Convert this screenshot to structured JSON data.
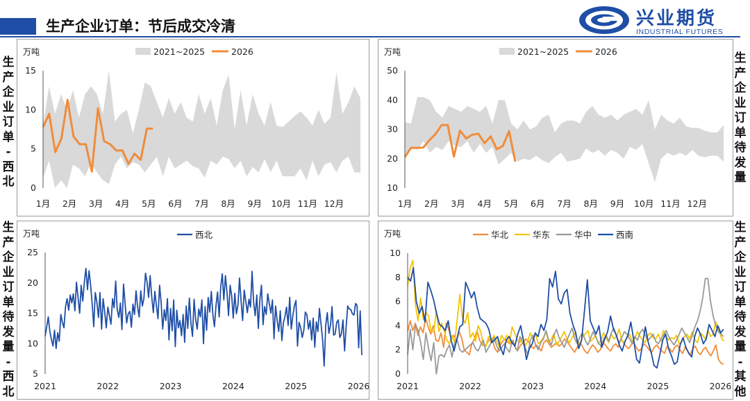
{
  "header": {
    "title": "生产企业订单：节后成交冷清"
  },
  "logo": {
    "cn": "兴业期货",
    "en": "INDUSTRIAL FUTURES"
  },
  "side_labels": {
    "top_left": "生产企业订单-西北",
    "top_right": "生产企业订单待发量",
    "bottom_left": "生产企业订单待发量-西北",
    "bottom_right": "生产企业订单待发量-其他"
  },
  "colors": {
    "band": "#d9d9d9",
    "y2026": "#f08c3a",
    "xibei": "#1f4ea6",
    "huabei": "#f08c3a",
    "huadong": "#f5c400",
    "huazhong": "#999999",
    "xinan": "#1f4ea6"
  },
  "chart_data": [
    {
      "type": "area",
      "unit": "万吨",
      "ylim": [
        0,
        15
      ],
      "yticks": [
        0,
        5,
        10,
        15
      ],
      "months": [
        "1月",
        "2月",
        "3月",
        "4月",
        "5月",
        "6月",
        "7月",
        "8月",
        "9月",
        "10月",
        "11月",
        "12月"
      ],
      "legend": [
        "2021~2025",
        "2026"
      ],
      "band_upper": [
        8,
        13,
        9.5,
        12,
        10,
        12.5,
        9,
        12,
        13,
        12,
        9.5,
        15,
        8.5,
        9.5,
        10,
        7,
        10,
        13.5,
        13,
        11,
        9,
        11.5,
        9.5,
        11,
        9,
        8.5,
        12,
        9.5,
        11.5,
        8,
        12.5,
        14.5,
        7.5,
        12.5,
        8,
        12,
        9.5,
        8,
        11,
        8,
        7.8,
        8.5,
        9.2,
        9.8,
        9,
        8,
        10,
        8.2,
        9,
        14.8,
        9.5,
        11,
        13,
        11.5
      ],
      "band_lower": [
        1.2,
        3.5,
        0,
        1,
        0,
        3,
        2.5,
        1.5,
        3.2,
        2,
        1,
        0.5,
        3,
        4,
        2.5,
        3.3,
        3,
        2,
        3,
        4,
        1.5,
        4,
        2.5,
        3,
        3.5,
        2.8,
        2.5,
        1.3,
        3.5,
        3,
        4,
        3.7,
        2.5,
        3.5,
        1.5,
        2.7,
        2,
        3.7,
        2,
        3.5,
        1.5,
        1.5,
        1.5,
        2.5,
        1,
        3.5,
        1.5,
        3,
        3.3,
        2,
        3.5,
        4,
        2,
        2
      ],
      "series_2026": {
        "name": "2026",
        "values": [
          7.8,
          9.5,
          4.6,
          6.3,
          11.3,
          6.6,
          5.6,
          5.6,
          2.1,
          10.2,
          6,
          5.6,
          4.8,
          4.8,
          3.1,
          4.4,
          3.6,
          7.6,
          7.6
        ]
      }
    },
    {
      "type": "area",
      "unit": "万吨",
      "ylim": [
        10,
        50
      ],
      "yticks": [
        10,
        20,
        30,
        40,
        50
      ],
      "months": [
        "1月",
        "2月",
        "3月",
        "4月",
        "5月",
        "6月",
        "7月",
        "8月",
        "9月",
        "10月",
        "11月",
        "12月"
      ],
      "legend": [
        "2021~2025",
        "2026"
      ],
      "band_upper": [
        32.5,
        32,
        41,
        41,
        40,
        36,
        34,
        38,
        37,
        36,
        38,
        37,
        36,
        38,
        32,
        40,
        40,
        32,
        30,
        33,
        30,
        31,
        34,
        35,
        29,
        32,
        33,
        33,
        32,
        36,
        38,
        35,
        34,
        35,
        33,
        35,
        36,
        37,
        35,
        40,
        30,
        35,
        33,
        32,
        34,
        31,
        30.5,
        30.5,
        29.5,
        29,
        29,
        31.5
      ],
      "band_lower": [
        21,
        24,
        23,
        26,
        22,
        24,
        23,
        26,
        24.5,
        24,
        26,
        22,
        25,
        22,
        24,
        18,
        20,
        22,
        19,
        20,
        19.5,
        21,
        19.5,
        18.5,
        20.5,
        22,
        19,
        19.5,
        20,
        23.5,
        22,
        23,
        21,
        23,
        22,
        20,
        24,
        23,
        25,
        18.5,
        12,
        20,
        22,
        21,
        22,
        21,
        23,
        21,
        20.5,
        21,
        21,
        19
      ],
      "series_2026": {
        "name": "2026",
        "values": [
          20.5,
          23.7,
          23.7,
          23.8,
          26.3,
          28.4,
          31.5,
          31.5,
          20.7,
          29.6,
          26.9,
          28.2,
          28.5,
          25.3,
          27.6,
          23.2,
          24.4,
          29.4,
          19
        ]
      }
    },
    {
      "type": "line",
      "unit": "万吨",
      "ylim": [
        5,
        25
      ],
      "yticks": [
        5,
        10,
        15,
        20,
        25
      ],
      "xticks": [
        "2021",
        "2022",
        "2023",
        "2024",
        "2025",
        "2026"
      ],
      "series": [
        {
          "name": "西北",
          "values": [
            11.2,
            12.8,
            14.4,
            12,
            10.7,
            9.6,
            12.2,
            9.2,
            11.8,
            10.4,
            14.8,
            13.5,
            12.6,
            16,
            17.4,
            15.5,
            18,
            16.7,
            18.2,
            15.4,
            20.1,
            17.6,
            15,
            19.6,
            17,
            20,
            22.4,
            18.9,
            22,
            19.6,
            16.6,
            12.8,
            18.4,
            16.8,
            14.3,
            18.4,
            12.4,
            17.4,
            15.2,
            12.6,
            16,
            14.6,
            13.2,
            17.4,
            15.9,
            20.3,
            15.6,
            14.3,
            16.7,
            12.3,
            19.8,
            16.6,
            13.4,
            14.9,
            15.3,
            12.7,
            16.5,
            14.8,
            18.7,
            16,
            14.4,
            18.7,
            16.2,
            17.4,
            21.6,
            20.2,
            17.6,
            21.2,
            17.7,
            15.1,
            18.6,
            16.2,
            14.1,
            19.6,
            16.8,
            12.4,
            15.6,
            13.8,
            17.4,
            10.6,
            15.8,
            12.1,
            17.2,
            9.5,
            15.5,
            12.6,
            13.8,
            11.3,
            14.8,
            10.2,
            16.2,
            12.5,
            17.5,
            13.4,
            11.2,
            17.3,
            14,
            12.4,
            15.7,
            14.4,
            17.2,
            10,
            16.1,
            12.2,
            17.6,
            15.2,
            18.6,
            14.8,
            12.8,
            16.3,
            18.5,
            14.4,
            19.3,
            21.5,
            17.2,
            21.2,
            18.4,
            14.6,
            19.6,
            17.9,
            14.2,
            18.3,
            14.9,
            16.4,
            20.8,
            17,
            13.8,
            18.8,
            16.9,
            15.1,
            17.3,
            16,
            21.9,
            16.8,
            14.6,
            18,
            12.5,
            17.4,
            19.6,
            13.1,
            16.1,
            14.8,
            18.2,
            16.6,
            15,
            17.2,
            10.8,
            16.2,
            13.8,
            12,
            15.4,
            10.5,
            13.4,
            14.5,
            16,
            13,
            17.6,
            12.4,
            14.6,
            16.2,
            17.1,
            9.6,
            13.5,
            12.6,
            11,
            12.2,
            15.2,
            14.7,
            12.4,
            13.8,
            10.6,
            14.2,
            9.4,
            13.6,
            12,
            15.8,
            13.2,
            10.6,
            6.3,
            13.1,
            15.1,
            11.7,
            13,
            16.1,
            11.4,
            11.6,
            13.5,
            13.9,
            11,
            11.6,
            13.9,
            8.8,
            12.7,
            16.2,
            15.7,
            15.6,
            14.9,
            14.7,
            16.6,
            16.3,
            9.3,
            15.4,
            8.1
          ]
        }
      ]
    },
    {
      "type": "line",
      "unit": "万吨",
      "ylim": [
        0,
        10
      ],
      "yticks": [
        0,
        2,
        4,
        6,
        8,
        10
      ],
      "xticks": [
        "2021",
        "2022",
        "2023",
        "2024",
        "2025",
        "2026"
      ],
      "series": [
        {
          "name": "华北",
          "values": [
            3.5,
            4.4,
            3.6,
            4.2,
            3.2,
            3.9,
            3.4,
            4.6,
            3.9,
            3.3,
            4,
            2.8,
            2.7,
            3.4,
            2.2,
            4.2,
            3.7,
            2.9,
            3.2,
            2.7,
            3.5,
            3,
            2,
            1.8,
            1.6,
            2.5,
            2.9,
            3.6,
            2.8,
            2.4,
            2.3,
            2.6,
            2.9,
            2.8,
            2.1,
            1.8,
            2.4,
            2.7,
            2.9,
            2.6,
            2.5,
            2.8,
            2.1,
            2,
            2.4,
            2.6,
            2.9,
            2.7,
            2.3,
            2.1,
            2.4,
            2.2,
            1.9,
            2.6,
            2.8,
            2.5,
            2.2,
            2.4,
            2.6,
            2.3,
            2.5,
            2.9,
            2.7,
            2.4,
            2.1,
            1.8,
            2.2,
            2.6,
            2.3,
            1.9,
            1.7,
            2.1,
            2.4,
            2.2,
            1.8,
            2,
            2.6,
            2.4,
            2.1,
            1.9,
            2.3,
            2.5,
            2.2,
            2.9,
            2.6,
            2.3,
            2.1,
            2.4,
            2.6,
            2.2,
            1.9,
            2.1,
            2.5,
            2.3,
            2,
            1.8,
            2.2,
            2.4,
            2.1,
            1.9,
            1.7,
            2.3,
            2.1,
            1.8,
            2.2,
            2.4,
            2,
            1.7,
            2.2,
            1.9,
            1.6,
            2.1,
            2.3,
            1.8,
            1.6,
            2,
            2.2,
            1.8,
            1.5,
            1.9,
            2.4,
            1.2,
            0.9,
            0.8
          ]
        },
        {
          "name": "华东",
          "values": [
            7.3,
            8.8,
            9.4,
            5.7,
            4.4,
            6.3,
            4.5,
            5.1,
            4.8,
            3.5,
            3.5,
            5.2,
            3.5,
            4.2,
            3.6,
            2.8,
            2.5,
            3.2,
            2.6,
            4.5,
            6.6,
            4.6,
            4.2,
            5.1,
            3,
            3.4,
            2.7,
            4,
            3.5,
            2.4,
            2.3,
            3.1,
            2.6,
            3.2,
            2.8,
            2.3,
            3.2,
            2.8,
            3.2,
            2.5,
            3.9,
            3.4,
            2.8,
            2.6,
            3.1,
            2.3,
            2.7,
            3.4,
            2.9,
            3.3,
            2.5,
            2.7,
            3,
            3.5,
            2.6,
            2.9,
            3.3,
            2.4,
            2.7,
            3.1,
            3.5,
            2.9,
            2.6,
            3,
            3.4,
            2.8,
            2.5,
            3.1,
            3.3,
            3.6,
            2.7,
            2.9,
            3.2,
            2.5,
            2.8,
            3.4,
            3,
            2.6,
            3.3,
            2.9,
            3.1,
            3.7,
            2.8,
            2.6,
            3,
            3.3,
            2.7,
            2.9,
            3.5,
            3.1,
            2.8,
            2.6,
            3.2,
            3.4,
            3,
            2.9,
            3.3,
            2.7,
            3.6,
            3.1,
            2.8,
            3,
            2.9,
            3.2,
            2.5,
            2.7,
            3.1,
            3.3,
            2.9,
            3.5,
            2.8,
            2.6,
            3.4,
            3.2,
            2.9,
            3.6,
            3.1,
            3.3,
            4.3,
            3.8,
            3.1,
            2.7
          ]
        },
        {
          "name": "华中",
          "values": [
            1.6,
            3.7,
            2,
            4.1,
            3.6,
            2.6,
            1.2,
            3.4,
            2.1,
            1.1,
            2.6,
            0,
            1.5,
            1.6,
            1.4,
            2,
            2.4,
            1.4,
            2.6,
            2.8,
            2,
            1.8,
            2,
            2.2,
            2.4,
            2.6,
            2.1,
            1.9,
            2.4,
            2.8,
            1.8,
            2.2,
            2.6,
            3,
            2.4,
            1.9,
            2.2,
            2.5,
            2.1,
            1.8,
            2.7,
            2.3,
            1.9,
            3.1,
            2.6,
            2.2,
            1.6,
            2.8,
            3.2,
            2.4,
            2,
            2.6,
            2.9,
            3.6,
            2.8,
            2.4,
            3.2,
            3.7,
            3,
            2.6,
            2.2,
            2.8,
            3.3,
            3.8,
            2.9,
            2.5,
            3.1,
            3.4,
            2.8,
            2.4,
            2.9,
            3.5,
            3.1,
            2.6,
            2.3,
            2.9,
            3.2,
            2.7,
            3.4,
            3.8,
            3.1,
            2.6,
            3,
            3.5,
            3.3,
            2.9,
            2.5,
            3.1,
            2.8,
            3.4,
            3.7,
            3.2,
            2.8,
            3,
            3.3,
            2.7,
            2.5,
            2.9,
            3.2,
            3.6,
            3.1,
            2.7,
            2.4,
            2.8,
            3.3,
            3.8,
            3.4,
            3,
            2.6,
            3.2,
            3.9,
            4.4,
            5.2,
            6.3,
            7.9,
            7.9,
            6,
            4.8,
            4,
            3.5,
            3.3,
            3.1
          ]
        },
        {
          "name": "西南",
          "values": [
            8,
            7.7,
            8.8,
            6,
            5,
            5.6,
            4.3,
            7.6,
            6.9,
            6.1,
            5,
            4.1,
            3.9,
            3.6,
            4.4,
            2.8,
            1.9,
            2.9,
            3.9,
            4.1,
            7.6,
            7,
            6.3,
            6.8,
            5.5,
            4.6,
            4.4,
            4.2,
            3.7,
            2.6,
            2.8,
            3.1,
            2.2,
            1.6,
            2.8,
            3.1,
            2.6,
            2.3,
            3.3,
            4,
            2.7,
            1.2,
            2.1,
            2.5,
            3.4,
            3.1,
            4.1,
            3.6,
            4.5,
            7.9,
            7.2,
            8.5,
            6.2,
            5.8,
            6.7,
            7,
            5,
            4.1,
            3.4,
            2.1,
            2.8,
            5.2,
            7.8,
            4.4,
            3.8,
            3.3,
            4,
            2.2,
            2.9,
            3.5,
            4.8,
            3.7,
            3.2,
            2.4,
            1.9,
            2.7,
            3.2,
            4.3,
            2.8,
            1.2,
            0.9,
            2.4,
            3.9,
            2.6,
            1.8,
            0.7,
            0.5,
            1.6,
            2.8,
            3.3,
            2.1,
            1.5,
            0.8,
            1,
            2.4,
            3,
            2.2,
            1.7,
            1.4,
            3.1,
            3.8,
            3.3,
            2.5,
            2.9,
            4.1,
            3.6,
            3.1,
            4,
            3.4,
            3.7
          ]
        }
      ]
    }
  ]
}
